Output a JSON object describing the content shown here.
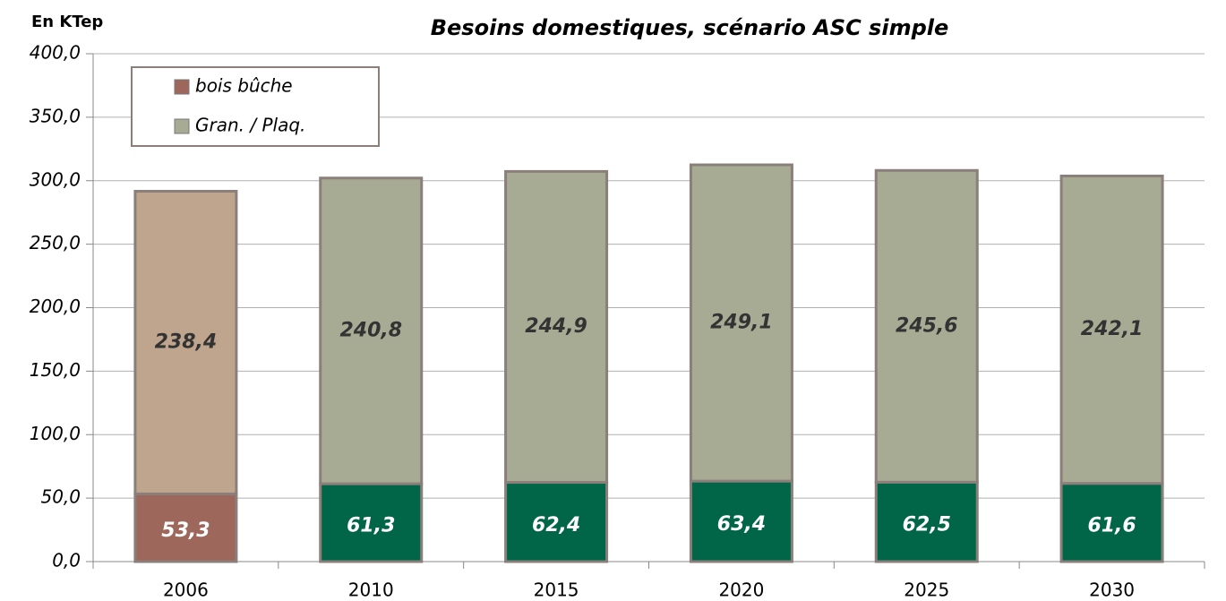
{
  "chart_data": {
    "type": "stacked_bar",
    "title": "Besoins domestiques, scénario ASC simple",
    "y_label": "En KTep",
    "categories": [
      "2006",
      "2010",
      "2015",
      "2020",
      "2025",
      "2030"
    ],
    "series": [
      {
        "name": "bois bûche",
        "color": "#9e675c",
        "point_colors": [
          "#9e675c",
          "#006647",
          "#006647",
          "#006647",
          "#006647",
          "#006647"
        ],
        "values": [
          53.3,
          61.3,
          62.4,
          63.4,
          62.5,
          61.6
        ],
        "value_labels": [
          "53,3",
          "61,3",
          "62,4",
          "63,4",
          "62,5",
          "61,6"
        ]
      },
      {
        "name": "Gran. / Plaq.",
        "color": "#a8ab94",
        "point_colors": [
          "#bfa58d",
          "#a8ab94",
          "#a8ab94",
          "#a8ab94",
          "#a8ab94",
          "#a8ab94"
        ],
        "values": [
          238.4,
          240.8,
          244.9,
          249.1,
          245.6,
          242.1
        ],
        "value_labels": [
          "238,4",
          "240,8",
          "244,9",
          "249,1",
          "245,6",
          "242,1"
        ]
      }
    ],
    "ylim": [
      0,
      400
    ],
    "yticks": [
      {
        "value": 0,
        "label": "0,0"
      },
      {
        "value": 50,
        "label": "50,0"
      },
      {
        "value": 100,
        "label": "100,0"
      },
      {
        "value": 150,
        "label": "150,0"
      },
      {
        "value": 200,
        "label": "200,0"
      },
      {
        "value": 250,
        "label": "250,0"
      },
      {
        "value": 300,
        "label": "300,0"
      },
      {
        "value": 350,
        "label": "350,0"
      },
      {
        "value": 400,
        "label": "400,0"
      }
    ],
    "grid": true,
    "legend": "top-left"
  }
}
